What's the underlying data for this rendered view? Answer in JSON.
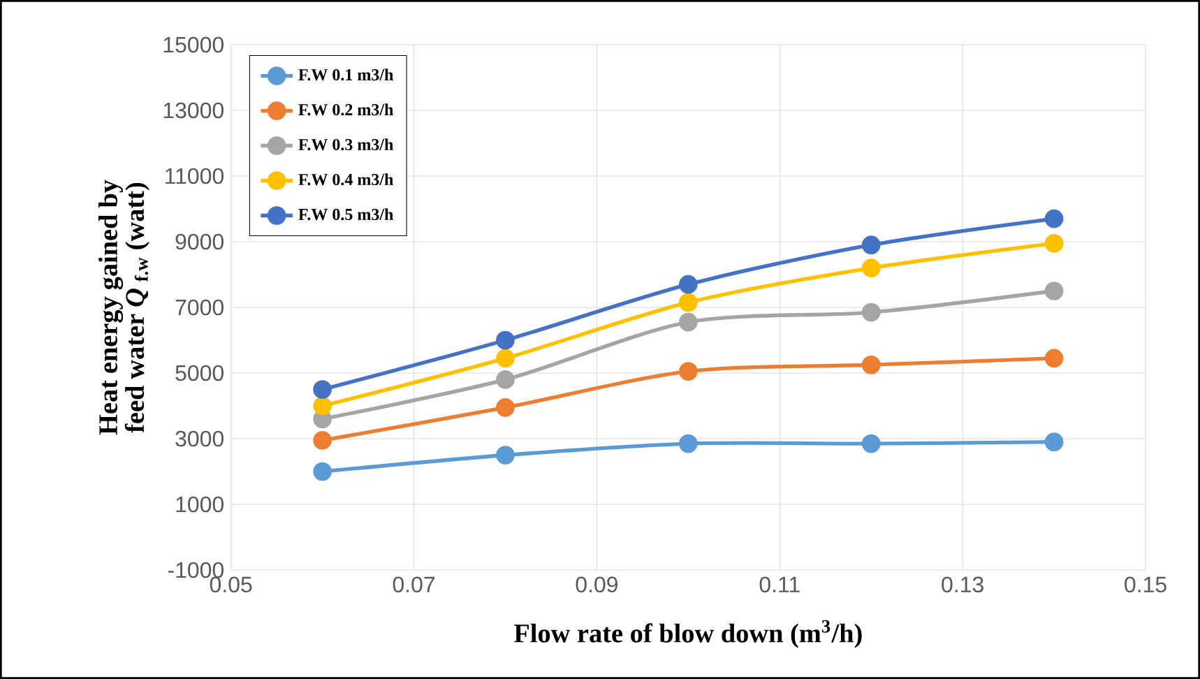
{
  "chart_data": {
    "type": "line",
    "xlabel": "Flow rate of blow down (m$^{3}$/h)",
    "ylabel": "Heat energy  gained by feed water *Q*$_{ f.w}$ (watt)",
    "x": [
      0.06,
      0.08,
      0.1,
      0.12,
      0.14
    ],
    "series": [
      {
        "name": "F.W 0.1 m3/h",
        "color": "#5b9bd5",
        "values": [
          2000,
          2500,
          2850,
          2850,
          2900
        ]
      },
      {
        "name": "F.W 0.2 m3/h",
        "color": "#ed7d31",
        "values": [
          2950,
          3950,
          5050,
          5250,
          5450
        ]
      },
      {
        "name": "F.W 0.3 m3/h",
        "color": "#a5a5a5",
        "values": [
          3600,
          4800,
          6550,
          6850,
          7500
        ]
      },
      {
        "name": "F.W 0.4 m3/h",
        "color": "#ffc000",
        "values": [
          4000,
          5450,
          7150,
          8200,
          8950
        ]
      },
      {
        "name": "F.W 0.5 m3/h",
        "color": "#4472c4",
        "values": [
          4500,
          6000,
          7700,
          8900,
          9700
        ]
      }
    ],
    "xlim": [
      0.05,
      0.15
    ],
    "xticks": [
      0.05,
      0.07,
      0.09,
      0.11,
      0.13,
      0.15
    ],
    "ylim": [
      -1000,
      15000
    ],
    "yticks": [
      -1000,
      1000,
      3000,
      5000,
      7000,
      9000,
      11000,
      13000,
      15000
    ],
    "grid": true,
    "legend": "top left",
    "marker": "circle",
    "line_style": "solid"
  }
}
